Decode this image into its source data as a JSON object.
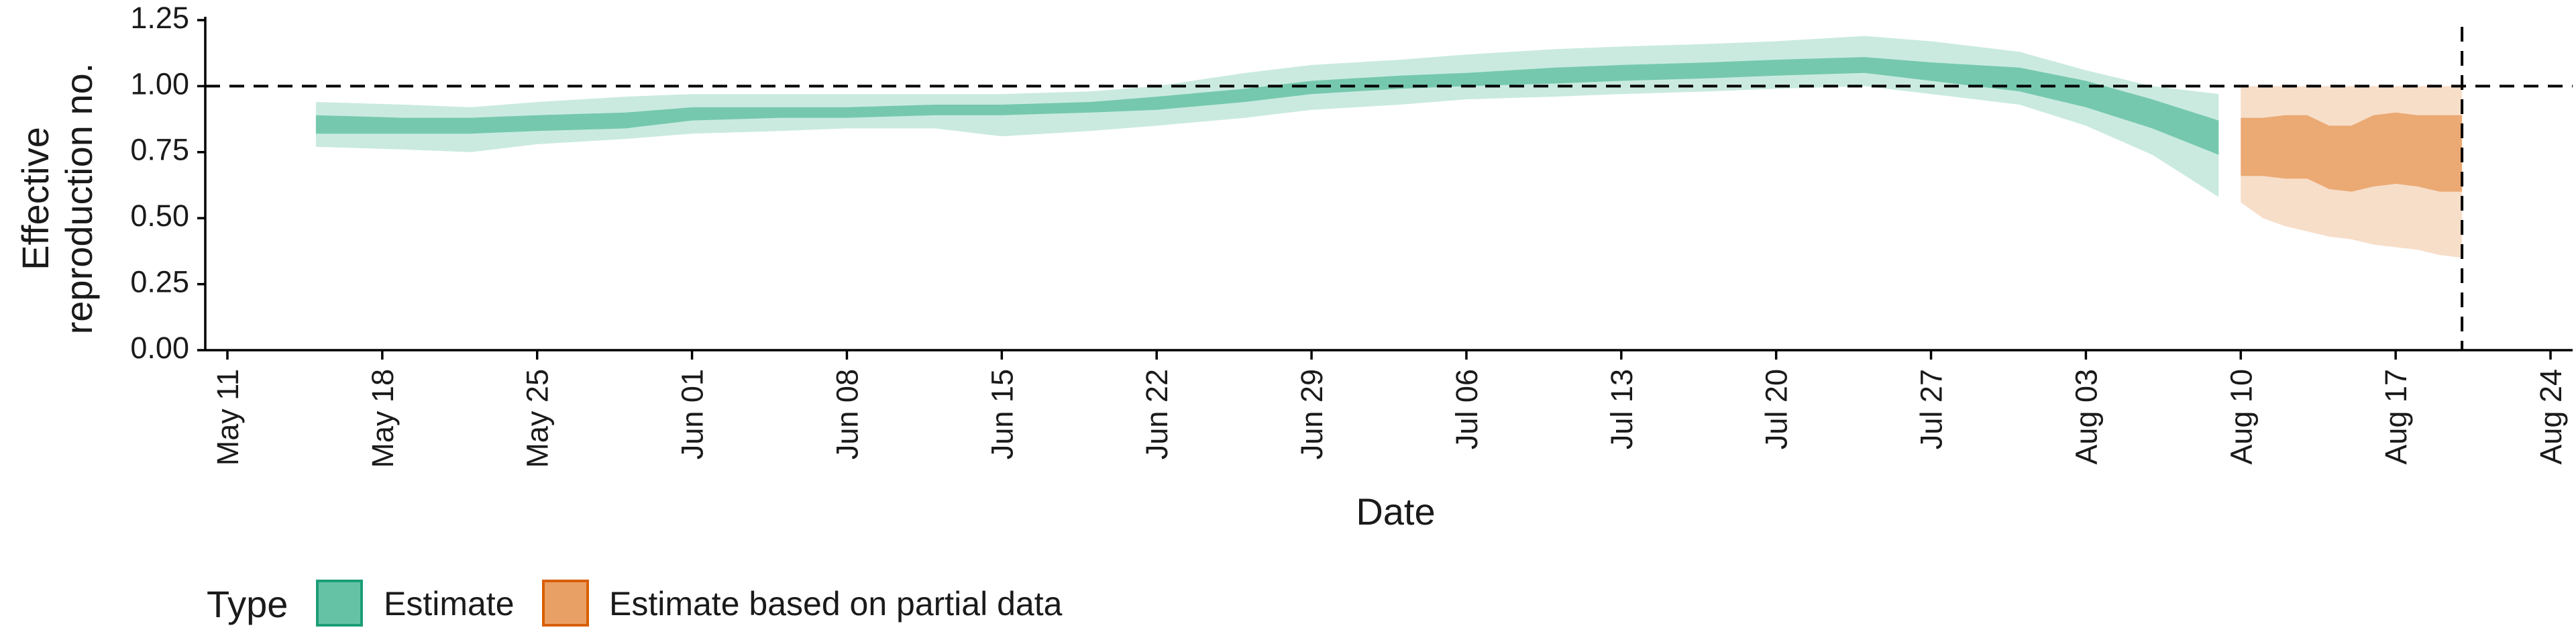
{
  "chart_data": {
    "type": "area",
    "title": "",
    "xlabel": "Date",
    "ylabel_lines": [
      "Effective",
      "reproduction no."
    ],
    "ylim": [
      0,
      1.25
    ],
    "y_ticks": [
      "0.00",
      "0.25",
      "0.50",
      "0.75",
      "1.00",
      "1.25"
    ],
    "x_ticks": [
      "2020-05-11",
      "2020-05-18",
      "2020-05-25",
      "2020-06-01",
      "2020-06-08",
      "2020-06-15",
      "2020-06-22",
      "2020-06-29",
      "2020-07-06",
      "2020-07-13",
      "2020-07-20",
      "2020-07-27",
      "2020-08-03",
      "2020-08-10",
      "2020-08-17",
      "2020-08-24"
    ],
    "x_tick_labels": [
      "May 11",
      "May 18",
      "May 25",
      "Jun 01",
      "Jun 08",
      "Jun 15",
      "Jun 22",
      "Jun 29",
      "Jul 06",
      "Jul 13",
      "Jul 20",
      "Jul 27",
      "Aug 03",
      "Aug 10",
      "Aug 17",
      "Aug 24"
    ],
    "xlim": [
      "2020-05-10",
      "2020-08-25"
    ],
    "reference_line_y": 1.0,
    "reference_line_date": "2020-08-20",
    "grid": false,
    "legend": {
      "title": "Type",
      "position": "bottom-left",
      "entries": [
        "Estimate",
        "Estimate based on partial data"
      ]
    },
    "series": [
      {
        "name": "Estimate",
        "color": "#66c2a5",
        "border_color": "#1b9e77",
        "x": [
          "2020-05-15",
          "2020-05-19",
          "2020-05-22",
          "2020-05-25",
          "2020-05-29",
          "2020-06-01",
          "2020-06-05",
          "2020-06-08",
          "2020-06-12",
          "2020-06-15",
          "2020-06-19",
          "2020-06-22",
          "2020-06-26",
          "2020-06-29",
          "2020-07-03",
          "2020-07-06",
          "2020-07-10",
          "2020-07-13",
          "2020-07-17",
          "2020-07-20",
          "2020-07-24",
          "2020-07-27",
          "2020-07-31",
          "2020-08-03",
          "2020-08-06",
          "2020-08-09"
        ],
        "median": [
          0.86,
          0.85,
          0.85,
          0.86,
          0.87,
          0.89,
          0.9,
          0.9,
          0.91,
          0.91,
          0.92,
          0.93,
          0.96,
          0.99,
          1.01,
          1.02,
          1.04,
          1.04,
          1.06,
          1.07,
          1.08,
          1.06,
          1.03,
          0.97,
          0.89,
          0.8
        ],
        "lower_50": [
          0.82,
          0.82,
          0.82,
          0.83,
          0.84,
          0.87,
          0.88,
          0.88,
          0.89,
          0.89,
          0.9,
          0.91,
          0.94,
          0.97,
          0.99,
          1.0,
          1.01,
          1.02,
          1.03,
          1.04,
          1.05,
          1.02,
          0.98,
          0.92,
          0.84,
          0.74
        ],
        "upper_50": [
          0.89,
          0.88,
          0.88,
          0.89,
          0.9,
          0.92,
          0.92,
          0.92,
          0.93,
          0.93,
          0.94,
          0.96,
          0.99,
          1.02,
          1.04,
          1.05,
          1.07,
          1.08,
          1.09,
          1.1,
          1.11,
          1.09,
          1.07,
          1.02,
          0.95,
          0.87
        ],
        "lower_90": [
          0.77,
          0.76,
          0.75,
          0.78,
          0.8,
          0.82,
          0.83,
          0.84,
          0.84,
          0.81,
          0.83,
          0.85,
          0.88,
          0.91,
          0.93,
          0.95,
          0.96,
          0.97,
          0.98,
          0.99,
          1.0,
          0.97,
          0.93,
          0.85,
          0.74,
          0.58
        ],
        "upper_90": [
          0.94,
          0.93,
          0.92,
          0.94,
          0.96,
          0.97,
          0.97,
          0.97,
          0.97,
          0.97,
          0.98,
          1.0,
          1.05,
          1.08,
          1.1,
          1.12,
          1.14,
          1.15,
          1.16,
          1.17,
          1.19,
          1.17,
          1.13,
          1.06,
          1.0,
          0.97
        ]
      },
      {
        "name": "Estimate based on partial data",
        "color": "#e9a064",
        "border_color": "#d95f02",
        "x": [
          "2020-08-10",
          "2020-08-11",
          "2020-08-12",
          "2020-08-13",
          "2020-08-14",
          "2020-08-15",
          "2020-08-16",
          "2020-08-17",
          "2020-08-18",
          "2020-08-19",
          "2020-08-20"
        ],
        "median": [
          0.74,
          0.74,
          0.75,
          0.75,
          0.73,
          0.72,
          0.74,
          0.75,
          0.74,
          0.74,
          0.74
        ],
        "lower_50": [
          0.66,
          0.66,
          0.65,
          0.65,
          0.61,
          0.6,
          0.62,
          0.63,
          0.62,
          0.6,
          0.6
        ],
        "upper_50": [
          0.88,
          0.88,
          0.89,
          0.89,
          0.85,
          0.85,
          0.89,
          0.9,
          0.89,
          0.89,
          0.89
        ],
        "lower_90": [
          0.56,
          0.5,
          0.47,
          0.45,
          0.43,
          0.42,
          0.4,
          0.39,
          0.38,
          0.36,
          0.35
        ],
        "upper_90": [
          1.0,
          1.0,
          1.0,
          1.0,
          1.0,
          1.0,
          1.0,
          1.0,
          1.0,
          1.0,
          1.0
        ]
      }
    ]
  }
}
